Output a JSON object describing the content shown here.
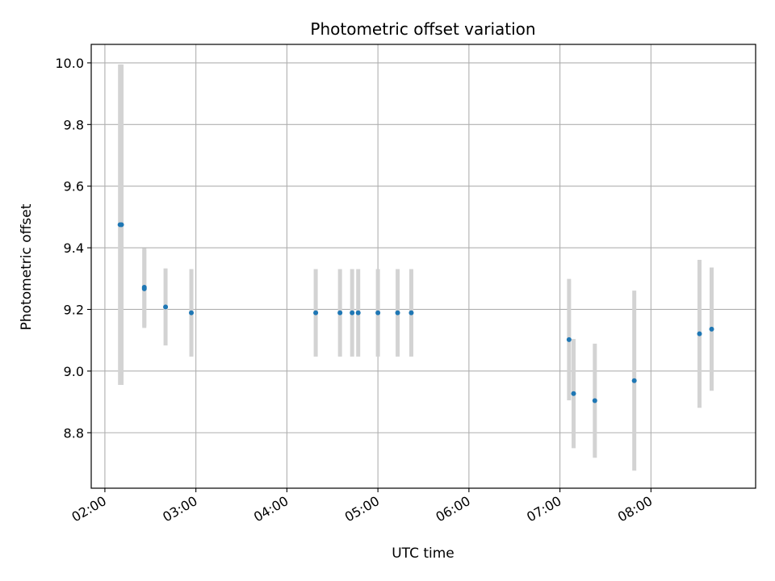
{
  "chart_data": {
    "type": "scatter",
    "title": "Photometric offset variation",
    "xlabel": "UTC time",
    "ylabel": "Photometric offset",
    "grid": true,
    "x_ticks": [
      "02:00",
      "03:00",
      "04:00",
      "05:00",
      "06:00",
      "07:00",
      "08:00"
    ],
    "x_tick_hours": [
      2,
      3,
      4,
      5,
      6,
      7,
      8
    ],
    "y_ticks": [
      "8.8",
      "9.0",
      "9.2",
      "9.4",
      "9.6",
      "9.8",
      "10.0"
    ],
    "y_tick_values": [
      8.8,
      9.0,
      9.2,
      9.4,
      9.6,
      9.8,
      10.0
    ],
    "xlim": [
      "01:51",
      "09:09"
    ],
    "ylim": [
      8.62,
      10.06
    ],
    "point_color": "#1f77b4",
    "errorbar_color": "#d3d3d3",
    "series": [
      {
        "points": [
          {
            "time": "02:10",
            "value": 9.475,
            "err": 0.52
          },
          {
            "time": "02:11",
            "value": 9.475,
            "err": 0.52
          },
          {
            "time": "02:26",
            "value": 9.272,
            "err": 0.127
          },
          {
            "time": "02:26",
            "value": 9.267,
            "err": 0.127
          },
          {
            "time": "02:40",
            "value": 9.208,
            "err": 0.125
          },
          {
            "time": "02:57",
            "value": 9.189,
            "err": 0.142
          },
          {
            "time": "04:19",
            "value": 9.189,
            "err": 0.142
          },
          {
            "time": "04:35",
            "value": 9.189,
            "err": 0.142
          },
          {
            "time": "04:43",
            "value": 9.189,
            "err": 0.142
          },
          {
            "time": "04:47",
            "value": 9.189,
            "err": 0.142
          },
          {
            "time": "05:00",
            "value": 9.189,
            "err": 0.142
          },
          {
            "time": "05:13",
            "value": 9.189,
            "err": 0.142
          },
          {
            "time": "05:22",
            "value": 9.189,
            "err": 0.142
          },
          {
            "time": "07:06",
            "value": 9.102,
            "err": 0.197
          },
          {
            "time": "07:09",
            "value": 8.927,
            "err": 0.177
          },
          {
            "time": "07:23",
            "value": 8.904,
            "err": 0.185
          },
          {
            "time": "07:49",
            "value": 8.969,
            "err": 0.292
          },
          {
            "time": "08:32",
            "value": 9.121,
            "err": 0.24
          },
          {
            "time": "08:40",
            "value": 9.136,
            "err": 0.2
          }
        ]
      }
    ]
  }
}
